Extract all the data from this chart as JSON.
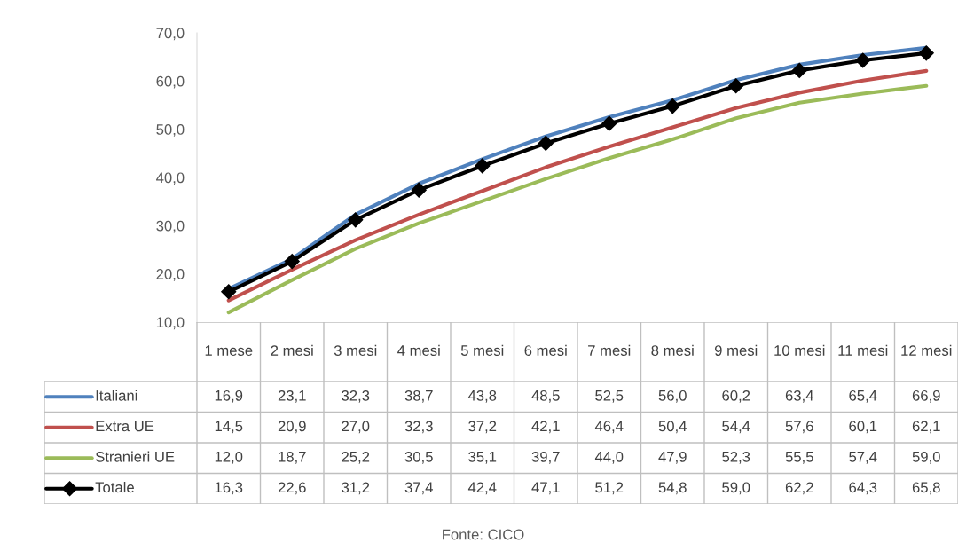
{
  "chart_data": {
    "type": "line",
    "categories": [
      "1 mese",
      "2 mesi",
      "3 mesi",
      "4 mesi",
      "5 mesi",
      "6 mesi",
      "7 mesi",
      "8 mesi",
      "9 mesi",
      "10 mesi",
      "11 mesi",
      "12 mesi"
    ],
    "ylim": [
      10,
      70
    ],
    "yticks": [
      {
        "value": 10,
        "label": "10,0"
      },
      {
        "value": 20,
        "label": "20,0"
      },
      {
        "value": 30,
        "label": "30,0"
      },
      {
        "value": 40,
        "label": "40,0"
      },
      {
        "value": 50,
        "label": "50,0"
      },
      {
        "value": 60,
        "label": "60,0"
      },
      {
        "value": 70,
        "label": "70,0"
      }
    ],
    "grid": false,
    "legend": "bottom",
    "line_style": "solid",
    "series": [
      {
        "name": "Italiani",
        "color": "#4f81bd",
        "marker": "none",
        "values": [
          16.9,
          23.1,
          32.3,
          38.7,
          43.8,
          48.5,
          52.5,
          56.0,
          60.2,
          63.4,
          65.4,
          66.9
        ],
        "value_labels": [
          "16,9",
          "23,1",
          "32,3",
          "38,7",
          "43,8",
          "48,5",
          "52,5",
          "56,0",
          "60,2",
          "63,4",
          "65,4",
          "66,9"
        ]
      },
      {
        "name": "Extra UE",
        "color": "#c0504d",
        "marker": "none",
        "values": [
          14.5,
          20.9,
          27.0,
          32.3,
          37.2,
          42.1,
          46.4,
          50.4,
          54.4,
          57.6,
          60.1,
          62.1
        ],
        "value_labels": [
          "14,5",
          "20,9",
          "27,0",
          "32,3",
          "37,2",
          "42,1",
          "46,4",
          "50,4",
          "54,4",
          "57,6",
          "60,1",
          "62,1"
        ]
      },
      {
        "name": "Stranieri UE",
        "color": "#9bbb59",
        "marker": "none",
        "values": [
          12.0,
          18.7,
          25.2,
          30.5,
          35.1,
          39.7,
          44.0,
          47.9,
          52.3,
          55.5,
          57.4,
          59.0
        ],
        "value_labels": [
          "12,0",
          "18,7",
          "25,2",
          "30,5",
          "35,1",
          "39,7",
          "44,0",
          "47,9",
          "52,3",
          "55,5",
          "57,4",
          "59,0"
        ]
      },
      {
        "name": "Totale",
        "color": "#000000",
        "marker": "diamond",
        "values": [
          16.3,
          22.6,
          31.2,
          37.4,
          42.4,
          47.1,
          51.2,
          54.8,
          59.0,
          62.2,
          64.3,
          65.8
        ],
        "value_labels": [
          "16,3",
          "22,6",
          "31,2",
          "37,4",
          "42,4",
          "47,1",
          "51,2",
          "54,8",
          "59,0",
          "62,2",
          "64,3",
          "65,8"
        ]
      }
    ],
    "annotations": [
      "Fonte: CICO"
    ]
  }
}
